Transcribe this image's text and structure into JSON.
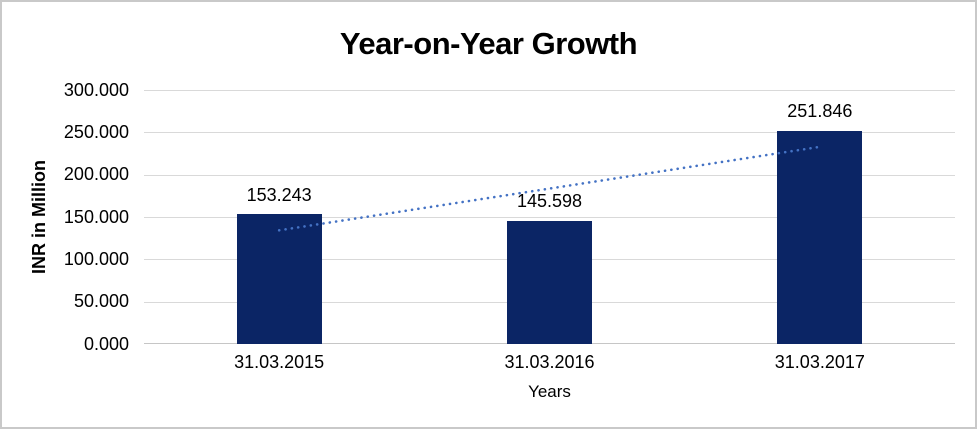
{
  "chart_data": {
    "type": "bar",
    "title": "Year-on-Year Growth",
    "categories": [
      "31.03.2015",
      "31.03.2016",
      "31.03.2017"
    ],
    "values": [
      153.243,
      145.598,
      251.846
    ],
    "data_labels": [
      "153.243",
      "145.598",
      "251.846"
    ],
    "xlabel": "Years",
    "ylabel": "INR in Million",
    "ylim": [
      0,
      300
    ],
    "ytick_step": 50,
    "yticks": [
      "300.000",
      "250.000",
      "200.000",
      "150.000",
      "100.000",
      "50.000",
      "0.000"
    ],
    "grid": true,
    "legend": "none",
    "bar_color": "#0b2565",
    "gridline_color": "#d9d9d9",
    "axis_line_color": "#c6c6c6",
    "trendline": {
      "style": "dotted",
      "color": "#4472c4",
      "fit": "linear"
    },
    "border_color": "#c9c9c9",
    "background_color": "#ffffff"
  }
}
